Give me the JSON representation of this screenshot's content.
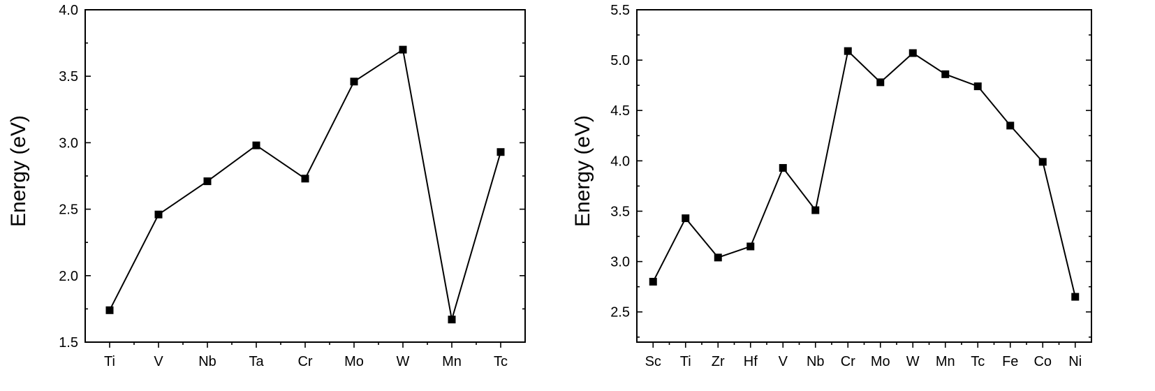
{
  "chart_data": [
    {
      "type": "line",
      "title": "",
      "xlabel": "",
      "ylabel": "Energy (eV)",
      "categories": [
        "Ti",
        "V",
        "Nb",
        "Ta",
        "Cr",
        "Mo",
        "W",
        "Mn",
        "Tc"
      ],
      "series": [
        {
          "values": [
            1.74,
            2.46,
            2.71,
            2.98,
            2.73,
            3.46,
            3.7,
            1.67,
            2.93
          ]
        }
      ],
      "ylim": [
        1.5,
        4.0
      ],
      "yticks": [
        "1.5",
        "2.0",
        "2.5",
        "3.0",
        "3.5",
        "4.0"
      ],
      "ystep": 0.5,
      "grid": false,
      "marker": "square",
      "color": "#000000"
    },
    {
      "type": "line",
      "title": "",
      "xlabel": "",
      "ylabel": "Energy (eV)",
      "categories": [
        "Sc",
        "Ti",
        "Zr",
        "Hf",
        "V",
        "Nb",
        "Cr",
        "Mo",
        "W",
        "Mn",
        "Tc",
        "Fe",
        "Co",
        "Ni"
      ],
      "series": [
        {
          "values": [
            2.8,
            3.43,
            3.04,
            3.15,
            3.93,
            3.51,
            5.09,
            4.78,
            5.07,
            4.86,
            4.74,
            4.35,
            3.99,
            2.65
          ]
        }
      ],
      "ylim": [
        2.2,
        5.5
      ],
      "yticks": [
        "2.5",
        "3.0",
        "3.5",
        "4.0",
        "4.5",
        "5.0",
        "5.5"
      ],
      "ystep": 0.5,
      "grid": false,
      "marker": "square",
      "color": "#000000"
    }
  ]
}
